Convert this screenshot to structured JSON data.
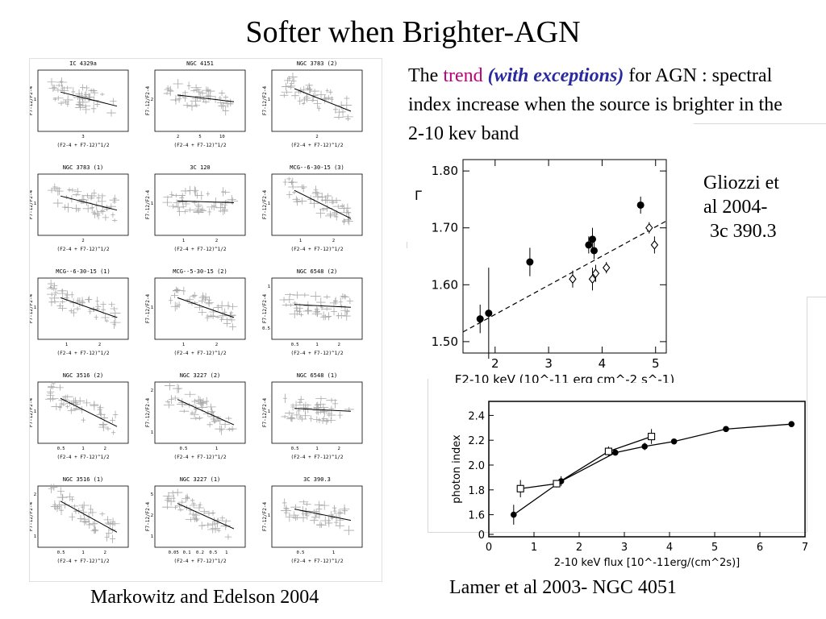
{
  "slide": {
    "title": "Softer when Brighter-AGN",
    "desc_the": "The",
    "desc_trend": "trend",
    "desc_exceptions": "(with exceptions)",
    "desc_rest": "for AGN : spectral index increase when the source is brighter in the 2-10 kev band",
    "citation_1": "Gliozzi et",
    "citation_2": "al 2004-",
    "citation_3": "3c 390.3",
    "caption_left": "Markowitz and Edelson 2004",
    "caption_right": "Lamer et al 2003- NGC 4051"
  },
  "colors": {
    "trend": "#c0007a",
    "exceptions": "#2a2aa0",
    "scatter": "#a8a8a8"
  },
  "chart_data": [
    {
      "type": "scatter",
      "title": "",
      "xlabel": "(F2-4 + F7-12)^1/2",
      "ylabel": "F7-12/F2-4",
      "panels": [
        {
          "name": "IC 4329a",
          "xticks": [
            "3"
          ],
          "yticks": [
            "1"
          ]
        },
        {
          "name": "NGC 4151",
          "xticks": [
            "2",
            "5",
            "10"
          ],
          "yticks": [
            "2"
          ]
        },
        {
          "name": "NGC 3783 (2)",
          "xticks": [
            "2"
          ],
          "yticks": [
            "1"
          ]
        },
        {
          "name": "NGC 3783 (1)",
          "xticks": [
            "2"
          ],
          "yticks": [
            "1"
          ]
        },
        {
          "name": "3C 120",
          "xticks": [
            "1",
            "2"
          ],
          "yticks": [
            "1"
          ]
        },
        {
          "name": "MCG--6-30-15 (3)",
          "xticks": [
            "1",
            "2"
          ],
          "yticks": [
            "1"
          ]
        },
        {
          "name": "MCG--6-30-15 (1)",
          "xticks": [
            "1",
            "2"
          ],
          "yticks": [
            "1"
          ]
        },
        {
          "name": "MCG--5-30-15 (2)",
          "xticks": [
            "1",
            "2"
          ],
          "yticks": [
            "1"
          ]
        },
        {
          "name": "NGC 6548 (2)",
          "xticks": [
            "0.5",
            "1",
            "2"
          ],
          "yticks": [
            "0.5",
            "1"
          ]
        },
        {
          "name": "NGC 3516 (2)",
          "xticks": [
            "0.5",
            "1",
            "2"
          ],
          "yticks": [
            "1"
          ]
        },
        {
          "name": "NGC 3227 (2)",
          "xticks": [
            "0.5",
            "1"
          ],
          "yticks": [
            "1",
            "2"
          ]
        },
        {
          "name": "NGC 6548 (1)",
          "xticks": [
            "0.5",
            "1",
            "2"
          ],
          "yticks": [
            "1"
          ]
        },
        {
          "name": "NGC 3516 (1)",
          "xticks": [
            "0.5",
            "1",
            "2"
          ],
          "yticks": [
            "1",
            "2"
          ]
        },
        {
          "name": "NGC 3227 (1)",
          "xticks": [
            "0.05",
            "0.1",
            "0.2",
            "0.5",
            "1"
          ],
          "yticks": [
            "1",
            "2",
            "5"
          ]
        },
        {
          "name": "3C 390.3",
          "xticks": [
            "0.5",
            "1"
          ],
          "yticks": [
            "1"
          ]
        }
      ]
    },
    {
      "type": "scatter",
      "title": "",
      "xlabel": "F2-10 keV (10^-11 erg cm^-2 s^-1)",
      "ylabel": "Γ",
      "xlim": [
        1.4,
        5.2
      ],
      "ylim": [
        1.48,
        1.82
      ],
      "xticks": [
        "2",
        "3",
        "4",
        "5"
      ],
      "yticks": [
        "1.50",
        "1.60",
        "1.70",
        "1.80"
      ],
      "series": [
        {
          "marker": "filled-circle",
          "x": [
            1.72,
            1.88,
            2.65,
            3.75,
            3.82,
            3.85,
            4.72
          ],
          "y": [
            1.54,
            1.55,
            1.64,
            1.67,
            1.68,
            1.66,
            1.74
          ],
          "yerr": [
            0.025,
            0.08,
            0.025,
            0.015,
            0.02,
            0.015,
            0.015
          ]
        },
        {
          "marker": "open-diamond",
          "x": [
            3.45,
            3.82,
            3.88,
            4.08,
            4.88,
            4.98
          ],
          "y": [
            1.61,
            1.61,
            1.62,
            1.63,
            1.7,
            1.67
          ],
          "yerr": [
            0.015,
            0.02,
            0.015,
            0.01,
            0.01,
            0.015
          ]
        }
      ],
      "fit": {
        "x": [
          1.4,
          5.2
        ],
        "y": [
          1.517,
          1.712
        ]
      }
    },
    {
      "type": "line",
      "title": "",
      "xlabel": "2-10 keV flux [10^-11erg/(cm^2s)]",
      "ylabel": "photon index",
      "xlim": [
        0,
        7
      ],
      "ylim": [
        0,
        2.5
      ],
      "xticks": [
        "0",
        "1",
        "2",
        "3",
        "4",
        "5",
        "6",
        "7"
      ],
      "yticks": [
        "0",
        "1.6",
        "1.8",
        "2.0",
        "2.2",
        "2.4"
      ],
      "series": [
        {
          "marker": "filled-circle",
          "x": [
            0.55,
            1.6,
            2.8,
            3.45,
            4.1,
            5.25,
            6.7
          ],
          "y": [
            1.6,
            1.87,
            2.1,
            2.15,
            2.19,
            2.29,
            2.33
          ],
          "yerr": [
            0.08,
            0.04,
            0.02,
            0.03,
            0.015,
            0.02,
            0.015
          ]
        },
        {
          "marker": "open-square",
          "x": [
            0.7,
            1.5,
            2.65,
            3.6
          ],
          "y": [
            1.81,
            1.85,
            2.11,
            2.23
          ],
          "yerr": [
            0.07,
            0.03,
            0.04,
            0.06
          ]
        }
      ]
    }
  ]
}
